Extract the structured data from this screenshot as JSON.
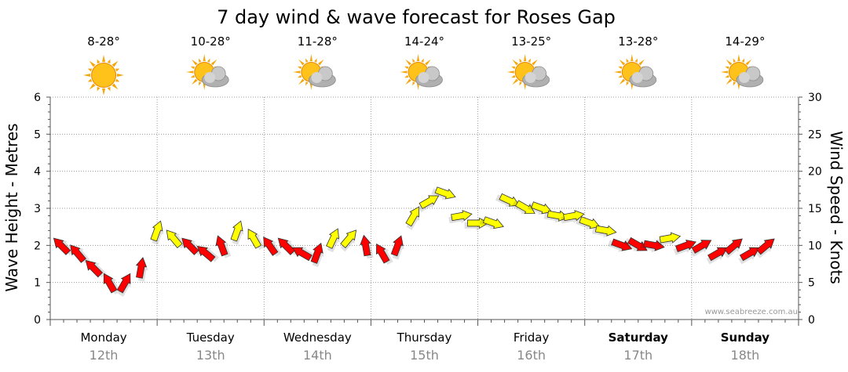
{
  "chart_data": {
    "type": "line",
    "title": "7 day wind & wave forecast for Roses Gap",
    "ylabel_left": "Wave Height - Metres",
    "ylabel_right": "Wind Speed - Knots",
    "ylim_left": [
      0,
      6
    ],
    "ylim_right": [
      0,
      30
    ],
    "yticks_left": [
      "0",
      "1",
      "2",
      "3",
      "4",
      "5",
      "6"
    ],
    "yticks_right": [
      "0",
      "5",
      "10",
      "15",
      "20",
      "25",
      "30"
    ],
    "credit": "www.seabreeze.com.au",
    "days": [
      {
        "name": "Monday",
        "date": "12th",
        "temp": "8-28°",
        "weather": "sunny",
        "bold": false
      },
      {
        "name": "Tuesday",
        "date": "13th",
        "temp": "10-28°",
        "weather": "partly-cloudy",
        "bold": false
      },
      {
        "name": "Wednesday",
        "date": "14th",
        "temp": "11-28°",
        "weather": "partly-cloudy",
        "bold": false
      },
      {
        "name": "Thursday",
        "date": "15th",
        "temp": "14-24°",
        "weather": "partly-cloudy",
        "bold": false
      },
      {
        "name": "Friday",
        "date": "16th",
        "temp": "13-25°",
        "weather": "partly-cloudy",
        "bold": false
      },
      {
        "name": "Saturday",
        "date": "17th",
        "temp": "13-28°",
        "weather": "partly-cloudy",
        "bold": true
      },
      {
        "name": "Sunday",
        "date": "18th",
        "temp": "14-29°",
        "weather": "partly-cloudy",
        "bold": true
      }
    ],
    "series": [
      {
        "name": "Wind Speed (knots)",
        "unit": "knots",
        "color_low": "#ff0000",
        "color_high": "#ffff00",
        "threshold_knots": 11,
        "x_days": [
          0.1,
          0.25,
          0.4,
          0.55,
          0.7,
          0.85,
          1.0,
          1.15,
          1.3,
          1.45,
          1.6,
          1.75,
          1.9,
          2.05,
          2.2,
          2.35,
          2.5,
          2.65,
          2.8,
          2.95,
          3.1,
          3.25,
          3.4,
          3.55,
          3.7,
          3.85,
          4.0,
          4.15,
          4.3,
          4.45,
          4.6,
          4.75,
          4.9,
          5.05,
          5.2,
          5.35,
          5.5,
          5.65,
          5.8,
          5.95,
          6.1,
          6.25,
          6.4,
          6.55,
          6.7
        ],
        "wind_knots": [
          10,
          9,
          7,
          5,
          5,
          7,
          12,
          11,
          10,
          9,
          10,
          12,
          11,
          10,
          10,
          9,
          9,
          11,
          11,
          10,
          9,
          10,
          14,
          16,
          17,
          14,
          13,
          13,
          16,
          15,
          15,
          14,
          14,
          13,
          12,
          10,
          10,
          10,
          11,
          10,
          10,
          9,
          10,
          9,
          10
        ],
        "wind_dir_deg": [
          315,
          320,
          315,
          330,
          30,
          10,
          20,
          320,
          315,
          310,
          340,
          20,
          330,
          325,
          315,
          300,
          20,
          25,
          40,
          350,
          330,
          20,
          30,
          60,
          110,
          80,
          90,
          110,
          115,
          120,
          110,
          100,
          80,
          110,
          100,
          110,
          120,
          100,
          80,
          70,
          60,
          60,
          50,
          60,
          50
        ]
      }
    ]
  }
}
